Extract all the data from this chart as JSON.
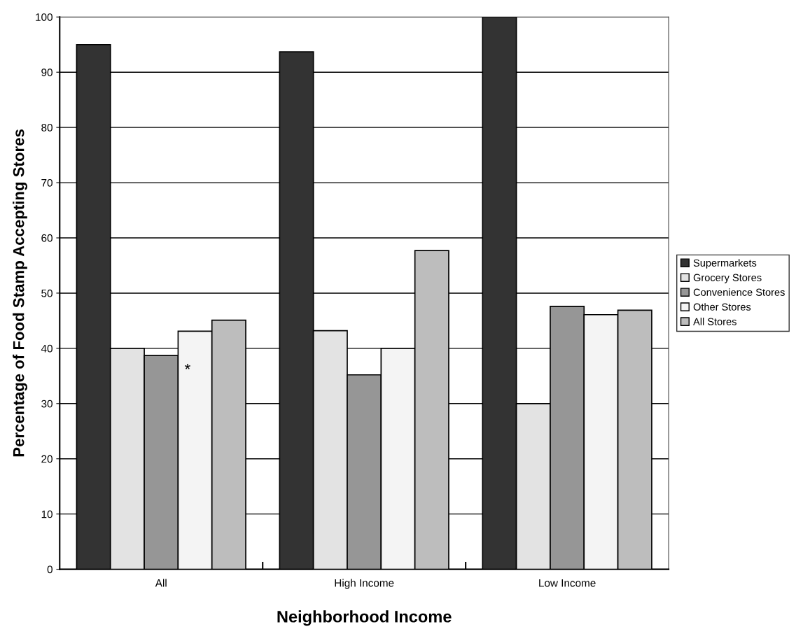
{
  "chart_data": {
    "type": "bar",
    "xlabel": "Neighborhood Income",
    "ylabel": "Percentage of Food Stamp Accepting Stores",
    "categories": [
      "All",
      "High Income",
      "Low Income"
    ],
    "series": [
      {
        "name": "Supermarkets",
        "color": "#333333",
        "values": [
          95.0,
          93.7,
          100
        ]
      },
      {
        "name": "Grocery Stores",
        "color": "#e3e3e3",
        "values": [
          40.0,
          43.2,
          30.0
        ]
      },
      {
        "name": "Convenience Stores",
        "color": "#969696",
        "values": [
          38.7,
          35.2,
          47.6
        ]
      },
      {
        "name": "Other Stores",
        "color": "#f4f4f4",
        "values": [
          43.1,
          40.0,
          46.1
        ]
      },
      {
        "name": "All Stores",
        "color": "#bdbdbd",
        "values": [
          45.1,
          57.7,
          46.9
        ]
      }
    ],
    "annotations": [
      "*"
    ],
    "ylim": [
      0,
      100
    ],
    "yticks": [
      0,
      10,
      20,
      30,
      40,
      50,
      60,
      70,
      80,
      90,
      100
    ],
    "grid": "y",
    "legend": "right"
  }
}
